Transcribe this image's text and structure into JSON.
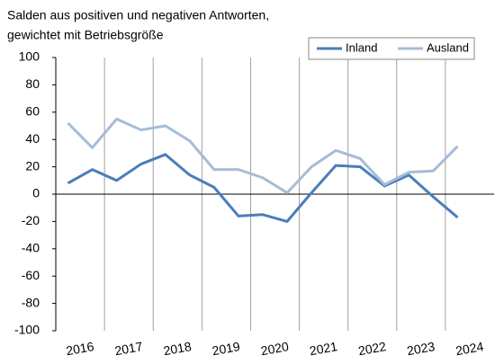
{
  "chart_data": {
    "type": "line",
    "title": "Salden aus positiven und negativen Antworten,",
    "subtitle": "gewichtet mit Betriebsgröße",
    "x": [
      2016.25,
      2016.75,
      2017.25,
      2017.75,
      2018.25,
      2018.75,
      2019.25,
      2019.75,
      2020.25,
      2020.75,
      2021.25,
      2021.75,
      2022.25,
      2022.75,
      2023.25,
      2023.75,
      2024.25
    ],
    "series": [
      {
        "name": "Inland",
        "color": "#4a7ebb",
        "values": [
          8,
          18,
          10,
          22,
          29,
          14,
          5,
          -16,
          -15,
          -20,
          1,
          21,
          20,
          6,
          14,
          -2,
          -17
        ]
      },
      {
        "name": "Ausland",
        "color": "#a6bcd6",
        "values": [
          52,
          34,
          55,
          47,
          50,
          39,
          18,
          18,
          12,
          1,
          20,
          32,
          26,
          7,
          16,
          17,
          35
        ]
      }
    ],
    "xlim": [
      2016,
      2025
    ],
    "xticks": [
      {
        "value": 2016.5,
        "label": "2016"
      },
      {
        "value": 2017.5,
        "label": "2017"
      },
      {
        "value": 2018.5,
        "label": "2018"
      },
      {
        "value": 2019.5,
        "label": "2019"
      },
      {
        "value": 2020.5,
        "label": "2020"
      },
      {
        "value": 2021.5,
        "label": "2021"
      },
      {
        "value": 2022.5,
        "label": "2022"
      },
      {
        "value": 2023.5,
        "label": "2023"
      },
      {
        "value": 2024.5,
        "label": "2024"
      }
    ],
    "ylim": [
      -100,
      100
    ],
    "yticks": [
      -100,
      -80,
      -60,
      -40,
      -20,
      0,
      20,
      40,
      60,
      80,
      100
    ],
    "grid": true,
    "legend": "top-right"
  }
}
